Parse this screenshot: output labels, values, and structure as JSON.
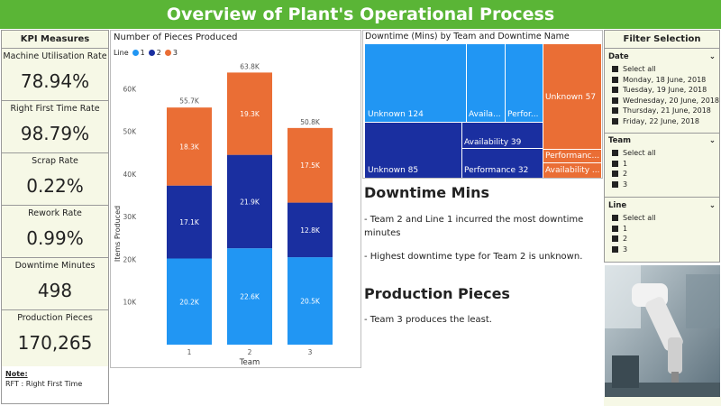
{
  "header": {
    "title": "Overview of Plant's Operational Process"
  },
  "kpi": {
    "title": "KPI Measures",
    "items": [
      {
        "label": "Machine Utilisation Rate",
        "value": "78.94%"
      },
      {
        "label": "Right First Time Rate",
        "value": "98.79%"
      },
      {
        "label": "Scrap Rate",
        "value": "0.22%"
      },
      {
        "label": "Rework Rate",
        "value": "0.99%"
      },
      {
        "label": "Downtime Minutes",
        "value": "498"
      },
      {
        "label": "Production Pieces",
        "value": "170,265"
      }
    ],
    "note_title": "Note:",
    "note_text": "RFT : Right First Time"
  },
  "chart_data": [
    {
      "type": "bar",
      "stacked": true,
      "title": "Number of Pieces Produced",
      "legend_title": "Line",
      "legend_placement": "top-left",
      "xlabel": "Team",
      "ylabel": "Items Produced",
      "categories": [
        "1",
        "2",
        "3"
      ],
      "y_ticks": [
        "10K",
        "20K",
        "30K",
        "40K",
        "50K",
        "60K"
      ],
      "ylim": [
        0,
        66000
      ],
      "series": [
        {
          "name": "1",
          "color": "#2196f3",
          "values": [
            20200,
            22600,
            20500
          ],
          "labels": [
            "20.2K",
            "22.6K",
            "20.5K"
          ]
        },
        {
          "name": "2",
          "color": "#1a2fa0",
          "values": [
            17100,
            21900,
            12800
          ],
          "labels": [
            "17.1K",
            "21.9K",
            "12.8K"
          ]
        },
        {
          "name": "3",
          "color": "#ea6e35",
          "values": [
            18300,
            19300,
            17500
          ],
          "labels": [
            "18.3K",
            "19.3K",
            "17.5K"
          ]
        }
      ],
      "totals": [
        "55.7K",
        "63.8K",
        "50.8K"
      ],
      "total_values": [
        55700,
        63800,
        50800
      ]
    },
    {
      "type": "treemap",
      "title": "Downtime (Mins) by Team and Downtime Name",
      "groups": [
        {
          "team": "1",
          "color": "#2196f3",
          "items": [
            {
              "name": "Unknown",
              "value": 124,
              "label": "Unknown 124"
            },
            {
              "name": "Availability",
              "label": "Availa..."
            },
            {
              "name": "Performance",
              "label": "Perfor..."
            }
          ]
        },
        {
          "team": "2",
          "color": "#ea6e35",
          "items": [
            {
              "name": "Unknown",
              "value": 57,
              "label": "Unknown 57"
            },
            {
              "name": "Performance",
              "label": "Performanc..."
            },
            {
              "name": "Availability",
              "label": "Availability ..."
            }
          ]
        },
        {
          "team": "3",
          "color": "#1a2fa0",
          "items": [
            {
              "name": "Unknown",
              "value": 85,
              "label": "Unknown 85"
            },
            {
              "name": "Availability",
              "value": 39,
              "label": "Availability 39"
            },
            {
              "name": "Performance",
              "value": 32,
              "label": "Performance 32"
            }
          ]
        }
      ]
    }
  ],
  "insights": {
    "downtime_heading": "Downtime Mins",
    "downtime_p1": " - Team 2 and Line 1 incurred the most downtime minutes",
    "downtime_p2": "- Highest downtime type for Team 2 is unknown.",
    "production_heading": "Production Pieces",
    "production_p1": "- Team 3 produces the least."
  },
  "filters": {
    "title": "Filter Selection",
    "date": {
      "label": "Date",
      "options": [
        "Select all",
        "Monday, 18 June, 2018",
        "Tuesday, 19 June, 2018",
        "Wednesday, 20 June, 2018",
        "Thursday, 21 June, 2018",
        "Friday, 22 June, 2018"
      ]
    },
    "team": {
      "label": "Team",
      "options": [
        "Select all",
        "1",
        "2",
        "3"
      ]
    },
    "line": {
      "label": "Line",
      "options": [
        "Select all",
        "1",
        "2",
        "3"
      ]
    }
  },
  "image": {
    "icon": "robotic-arm-photo"
  }
}
